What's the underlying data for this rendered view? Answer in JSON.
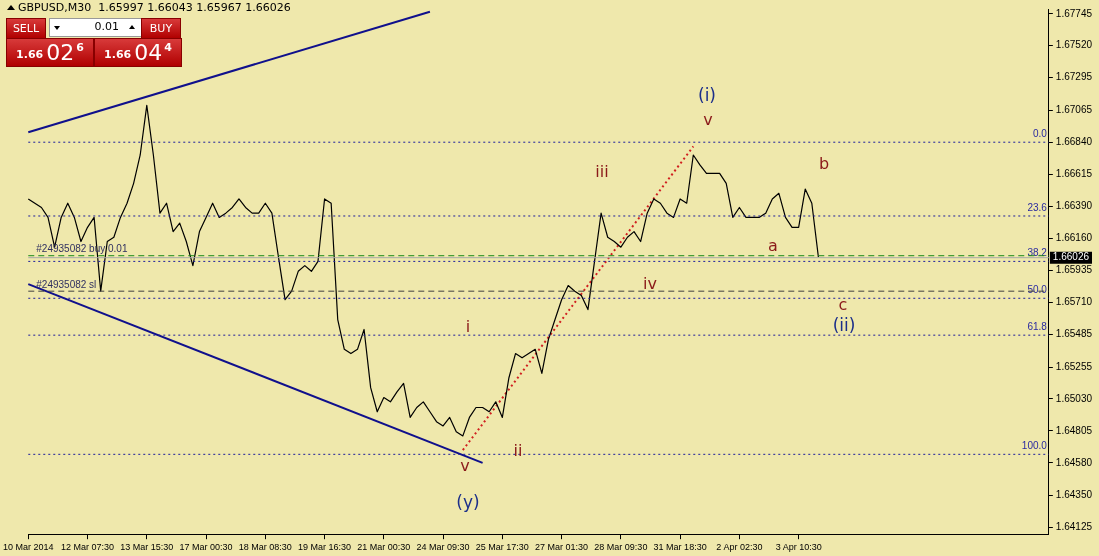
{
  "chart_data": {
    "type": "line",
    "title": "GBPUSD,M30  1.65997 1.66043 1.65967 1.66026",
    "categories": [
      "10 Mar 2014",
      null,
      null,
      null,
      null,
      null,
      null,
      null,
      null,
      "12 Mar 07:30",
      null,
      null,
      null,
      null,
      null,
      null,
      null,
      null,
      "13 Mar 15:30",
      null,
      null,
      null,
      null,
      null,
      null,
      null,
      null,
      "17 Mar 00:30",
      null,
      null,
      null,
      null,
      null,
      null,
      null,
      null,
      "18 Mar 08:30",
      null,
      null,
      null,
      null,
      null,
      null,
      null,
      null,
      "19 Mar 16:30",
      null,
      null,
      null,
      null,
      null,
      null,
      null,
      null,
      "21 Mar 00:30",
      null,
      null,
      null,
      null,
      null,
      null,
      null,
      null,
      "24 Mar 09:30",
      null,
      null,
      null,
      null,
      null,
      null,
      null,
      null,
      "25 Mar 17:30",
      null,
      null,
      null,
      null,
      null,
      null,
      null,
      null,
      "27 Mar 01:30",
      null,
      null,
      null,
      null,
      null,
      null,
      null,
      null,
      "28 Mar 09:30",
      null,
      null,
      null,
      null,
      null,
      null,
      null,
      null,
      "31 Mar 18:30",
      null,
      null,
      null,
      null,
      null,
      null,
      null,
      null,
      "2 Apr 02:30",
      null,
      null,
      null,
      null,
      null,
      null,
      null,
      null,
      "3 Apr 10:30",
      null,
      null,
      null,
      null,
      null,
      null,
      null,
      null,
      null,
      null,
      null,
      null,
      null,
      null,
      null,
      null,
      null,
      null,
      null,
      null,
      null,
      null,
      null,
      null,
      null,
      null,
      null,
      null,
      null,
      null,
      null,
      null,
      null,
      null,
      null,
      null,
      null,
      null
    ],
    "series": [
      {
        "color": "#000000",
        "values": [
          1.6644,
          1.6641,
          1.6638,
          1.6631,
          1.661,
          1.6631,
          1.6641,
          1.6631,
          1.6614,
          1.6624,
          1.6631,
          1.6579,
          1.6614,
          1.6617,
          1.6631,
          1.6641,
          1.6655,
          1.6675,
          1.671,
          1.6675,
          1.6634,
          1.6641,
          1.6621,
          1.6627,
          1.6614,
          1.6597,
          1.6621,
          1.6631,
          1.6641,
          1.6631,
          1.6634,
          1.6638,
          1.6644,
          1.6638,
          1.6634,
          1.6634,
          1.6641,
          1.6634,
          1.6603,
          1.6573,
          1.6579,
          1.6593,
          1.6597,
          1.6593,
          1.66,
          1.6644,
          1.6641,
          1.6559,
          1.6538,
          1.6535,
          1.6538,
          1.6552,
          1.6511,
          1.6494,
          1.6504,
          1.6501,
          1.6508,
          1.6514,
          1.649,
          1.6497,
          1.6501,
          1.6494,
          1.6487,
          1.6484,
          1.649,
          1.648,
          1.6477,
          1.649,
          1.6497,
          1.6497,
          1.6494,
          1.6501,
          1.649,
          1.6518,
          1.6535,
          1.6532,
          1.6535,
          1.6538,
          1.6521,
          1.6545,
          1.6559,
          1.6573,
          1.6583,
          1.6579,
          1.6576,
          1.6566,
          1.66,
          1.6634,
          1.6617,
          1.6614,
          1.661,
          1.6617,
          1.6621,
          1.6614,
          1.6634,
          1.6644,
          1.6641,
          1.6634,
          1.6631,
          1.6644,
          1.6641,
          1.6675,
          1.6668,
          1.6662,
          1.6662,
          1.6662,
          1.6655,
          1.6631,
          1.6638,
          1.6631,
          1.6631,
          1.6631,
          1.6634,
          1.6644,
          1.6648,
          1.6631,
          1.6624,
          1.6624,
          1.6651,
          1.6641,
          1.6603,
          null,
          null,
          null,
          null,
          null,
          null,
          null,
          null,
          null,
          null,
          null,
          null,
          null,
          null,
          null,
          null,
          null,
          null,
          null,
          null,
          null,
          null,
          null,
          null,
          null,
          null,
          null,
          null,
          null,
          null,
          null,
          null,
          null,
          null,
          null
        ]
      },
      {
        "type": "line",
        "color": "#10108c",
        "values": [
          1.6691,
          null,
          null,
          null,
          null,
          null,
          null,
          null,
          null,
          null,
          null,
          null,
          null,
          null,
          null,
          null,
          null,
          null,
          null,
          null,
          null,
          null,
          null,
          null,
          null,
          null,
          null,
          null,
          null,
          null,
          null,
          null,
          null,
          null,
          null,
          null,
          null,
          null,
          null,
          null,
          null,
          null,
          null,
          null,
          null,
          null,
          null,
          null,
          null,
          null,
          null,
          null,
          null,
          null,
          null,
          null,
          null,
          null,
          null,
          null,
          null,
          1.6776,
          null,
          null,
          null,
          null,
          null,
          null,
          null,
          null,
          null,
          null,
          null,
          null,
          null,
          null,
          null,
          null,
          null,
          null,
          null,
          null,
          null,
          null,
          null,
          null,
          null,
          null,
          null,
          null,
          null,
          null,
          null,
          null,
          null,
          null,
          null,
          null,
          null,
          null,
          null,
          null,
          null,
          null,
          null,
          null,
          null,
          null,
          null,
          null,
          null,
          null,
          null,
          null,
          null,
          null,
          null,
          null,
          null,
          null,
          null,
          null,
          null,
          null,
          null,
          null,
          null,
          null,
          null,
          null,
          null,
          null,
          null,
          null,
          null,
          null,
          null,
          null,
          null,
          null,
          null,
          null,
          null,
          null,
          null,
          null,
          null,
          null,
          null,
          null,
          null,
          null,
          null,
          null,
          null,
          null
        ]
      },
      {
        "type": "line",
        "color": "#10108c",
        "values": [
          1.6584,
          null,
          null,
          null,
          null,
          null,
          null,
          null,
          null,
          null,
          null,
          null,
          null,
          null,
          null,
          null,
          null,
          null,
          null,
          null,
          null,
          null,
          null,
          null,
          null,
          null,
          null,
          null,
          null,
          null,
          null,
          null,
          null,
          null,
          null,
          null,
          null,
          null,
          null,
          null,
          null,
          null,
          null,
          null,
          null,
          null,
          null,
          null,
          null,
          null,
          null,
          null,
          null,
          null,
          null,
          null,
          null,
          null,
          null,
          null,
          null,
          null,
          null,
          null,
          null,
          null,
          null,
          null,
          null,
          1.6458,
          null,
          null,
          null,
          null,
          null,
          null,
          null,
          null,
          null,
          null,
          null,
          null,
          null,
          null,
          null,
          null,
          null,
          null,
          null,
          null,
          null,
          null,
          null,
          null,
          null,
          null,
          null,
          null,
          null,
          null,
          null,
          null,
          null,
          null,
          null,
          null,
          null,
          null,
          null,
          null,
          null,
          null,
          null,
          null,
          null,
          null,
          null,
          null,
          null,
          null,
          null,
          null,
          null,
          null,
          null,
          null,
          null,
          null,
          null,
          null,
          null,
          null,
          null,
          null,
          null,
          null,
          null,
          null,
          null,
          null,
          null,
          null,
          null,
          null,
          null,
          null,
          null,
          null,
          null,
          null,
          null,
          null,
          null,
          null,
          null,
          null
        ]
      },
      {
        "type": "line",
        "color": "#d02020",
        "line_style": "dotted",
        "values": [
          null,
          null,
          null,
          null,
          null,
          null,
          null,
          null,
          null,
          null,
          null,
          null,
          null,
          null,
          null,
          null,
          null,
          null,
          null,
          null,
          null,
          null,
          null,
          null,
          null,
          null,
          null,
          null,
          null,
          null,
          null,
          null,
          null,
          null,
          null,
          null,
          null,
          null,
          null,
          null,
          null,
          null,
          null,
          null,
          null,
          null,
          null,
          null,
          null,
          null,
          null,
          null,
          null,
          null,
          null,
          null,
          null,
          null,
          null,
          null,
          null,
          null,
          null,
          null,
          null,
          null,
          1.6467,
          null,
          null,
          null,
          null,
          null,
          null,
          null,
          null,
          null,
          null,
          null,
          null,
          null,
          null,
          null,
          null,
          null,
          null,
          null,
          null,
          null,
          null,
          null,
          null,
          null,
          null,
          null,
          null,
          null,
          null,
          null,
          null,
          null,
          null,
          1.6681,
          null,
          null,
          null,
          null,
          null,
          null,
          null,
          null,
          null,
          null,
          null,
          null,
          null,
          null,
          null,
          null,
          null,
          null,
          null,
          null,
          null,
          null,
          null,
          null,
          null,
          null,
          null,
          null,
          null,
          null,
          null,
          null,
          null,
          null,
          null,
          null,
          null,
          null,
          null,
          null,
          null,
          null,
          null,
          null,
          null,
          null,
          null,
          null,
          null,
          null,
          null,
          null,
          null,
          null
        ]
      }
    ],
    "ylim": [
      1.64077,
      1.67779
    ],
    "yticks": [
      1.64125,
      {
        "value": 1.6435,
        "label": "1.64350"
      },
      {
        "value": 1.6458,
        "label": "1.64580"
      },
      1.64805,
      {
        "value": 1.6503,
        "label": "1.65030"
      },
      1.65255,
      1.65485,
      {
        "value": 1.6571,
        "label": "1.65710"
      },
      1.65935,
      {
        "value": 1.6616,
        "label": "1.66160"
      },
      {
        "value": 1.6639,
        "label": "1.66390"
      },
      1.66615,
      {
        "value": 1.6684,
        "label": "1.66840"
      },
      1.67065,
      1.67295,
      {
        "value": 1.6752,
        "label": "1.67520"
      },
      1.67745
    ],
    "ref_lines": [
      {
        "axis": "y",
        "value": 1.6684,
        "color": "#1c1c9c",
        "line_style": "dotted"
      },
      {
        "axis": "y",
        "value": 1.6632,
        "color": "#1c1c9c",
        "line_style": "dotted"
      },
      {
        "axis": "y",
        "value": 1.66,
        "color": "#1c1c9c",
        "line_style": "dotted"
      },
      {
        "axis": "y",
        "value": 1.6574,
        "color": "#1c1c9c",
        "line_style": "dotted"
      },
      {
        "axis": "y",
        "value": 1.6548,
        "color": "#1c1c9c",
        "line_style": "dotted"
      },
      {
        "axis": "y",
        "value": 1.6464,
        "color": "#1c1c9c",
        "line_style": "dotted"
      },
      {
        "axis": "y",
        "value": 1.6604,
        "label": "#24935082 buy 0.01",
        "color": "#1a8a1a",
        "line_style": "dashed"
      },
      {
        "axis": "y",
        "value": 1.6579,
        "label": "#24935082 sl",
        "color": "#404040",
        "line_style": "dashed"
      },
      {
        "axis": "y",
        "value": 1.66026,
        "label": "1.66026",
        "color": "#a8a8a8",
        "line_style": "solid"
      }
    ],
    "annotations": [
      "(i)",
      "v",
      "iii",
      "b",
      "a",
      "iv",
      "c",
      "(ii)",
      "i",
      "ii",
      "v",
      "(y)",
      "SELL",
      "0.01",
      "BUY",
      "1.66026",
      "1.66044",
      "0.0",
      "23.6",
      "38.2",
      "50.0",
      "61.8",
      "100.0"
    ],
    "grid": false,
    "legend": false,
    "marker": "none",
    "line_style": "solid"
  }
}
